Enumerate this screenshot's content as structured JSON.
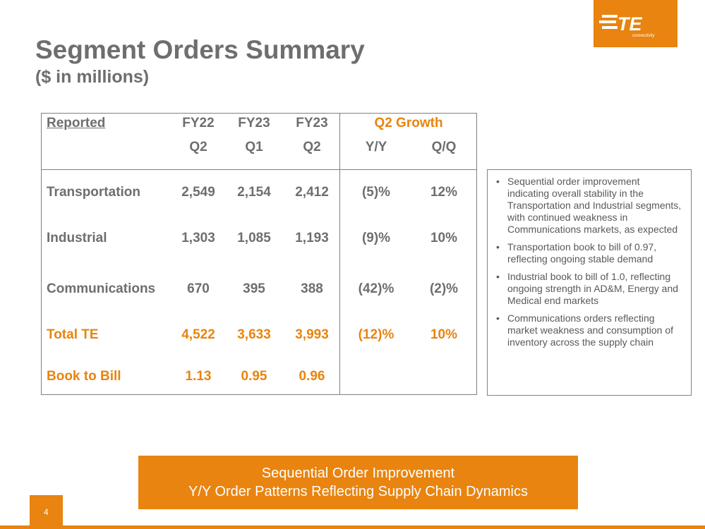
{
  "brand": {
    "logo_text": "TE",
    "logo_subtext": "connectivity",
    "accent_color": "#e8840f"
  },
  "title": "Segment Orders Summary",
  "subtitle": "($ in millions)",
  "table": {
    "reported_label": "Reported",
    "columns": [
      {
        "top": "FY22",
        "bottom": "Q2"
      },
      {
        "top": "FY23",
        "bottom": "Q1"
      },
      {
        "top": "FY23",
        "bottom": "Q2"
      }
    ],
    "growth_header": "Q2 Growth",
    "growth_columns": [
      "Y/Y",
      "Q/Q"
    ],
    "rows": [
      {
        "label": "Transportation",
        "values": [
          "2,549",
          "2,154",
          "2,412"
        ],
        "yy": "(5)%",
        "qq": "12%"
      },
      {
        "label": "Industrial",
        "values": [
          "1,303",
          "1,085",
          "1,193"
        ],
        "yy": "(9)%",
        "qq": "10%"
      },
      {
        "label": "Communications",
        "values": [
          "670",
          "395",
          "388"
        ],
        "yy": "(42)%",
        "qq": "(2)%"
      },
      {
        "label": "Total TE",
        "values": [
          "4,522",
          "3,633",
          "3,993"
        ],
        "yy": "(12)%",
        "qq": "10%"
      },
      {
        "label": "Book to Bill",
        "values": [
          "1.13",
          "0.95",
          "0.96"
        ]
      }
    ]
  },
  "notes": [
    "Sequential order improvement indicating overall stability in the Transportation and Industrial segments, with continued weakness in Communications markets, as expected",
    "Transportation book to bill of 0.97, reflecting ongoing stable demand",
    "Industrial book to bill of 1.0, reflecting ongoing strength in AD&M, Energy and Medical end markets",
    "Communications orders reflecting market weakness and consumption of inventory across the supply chain"
  ],
  "banner": {
    "line1": "Sequential Order Improvement",
    "line2": "Y/Y Order Patterns Reflecting Supply Chain Dynamics"
  },
  "page_number": "4"
}
